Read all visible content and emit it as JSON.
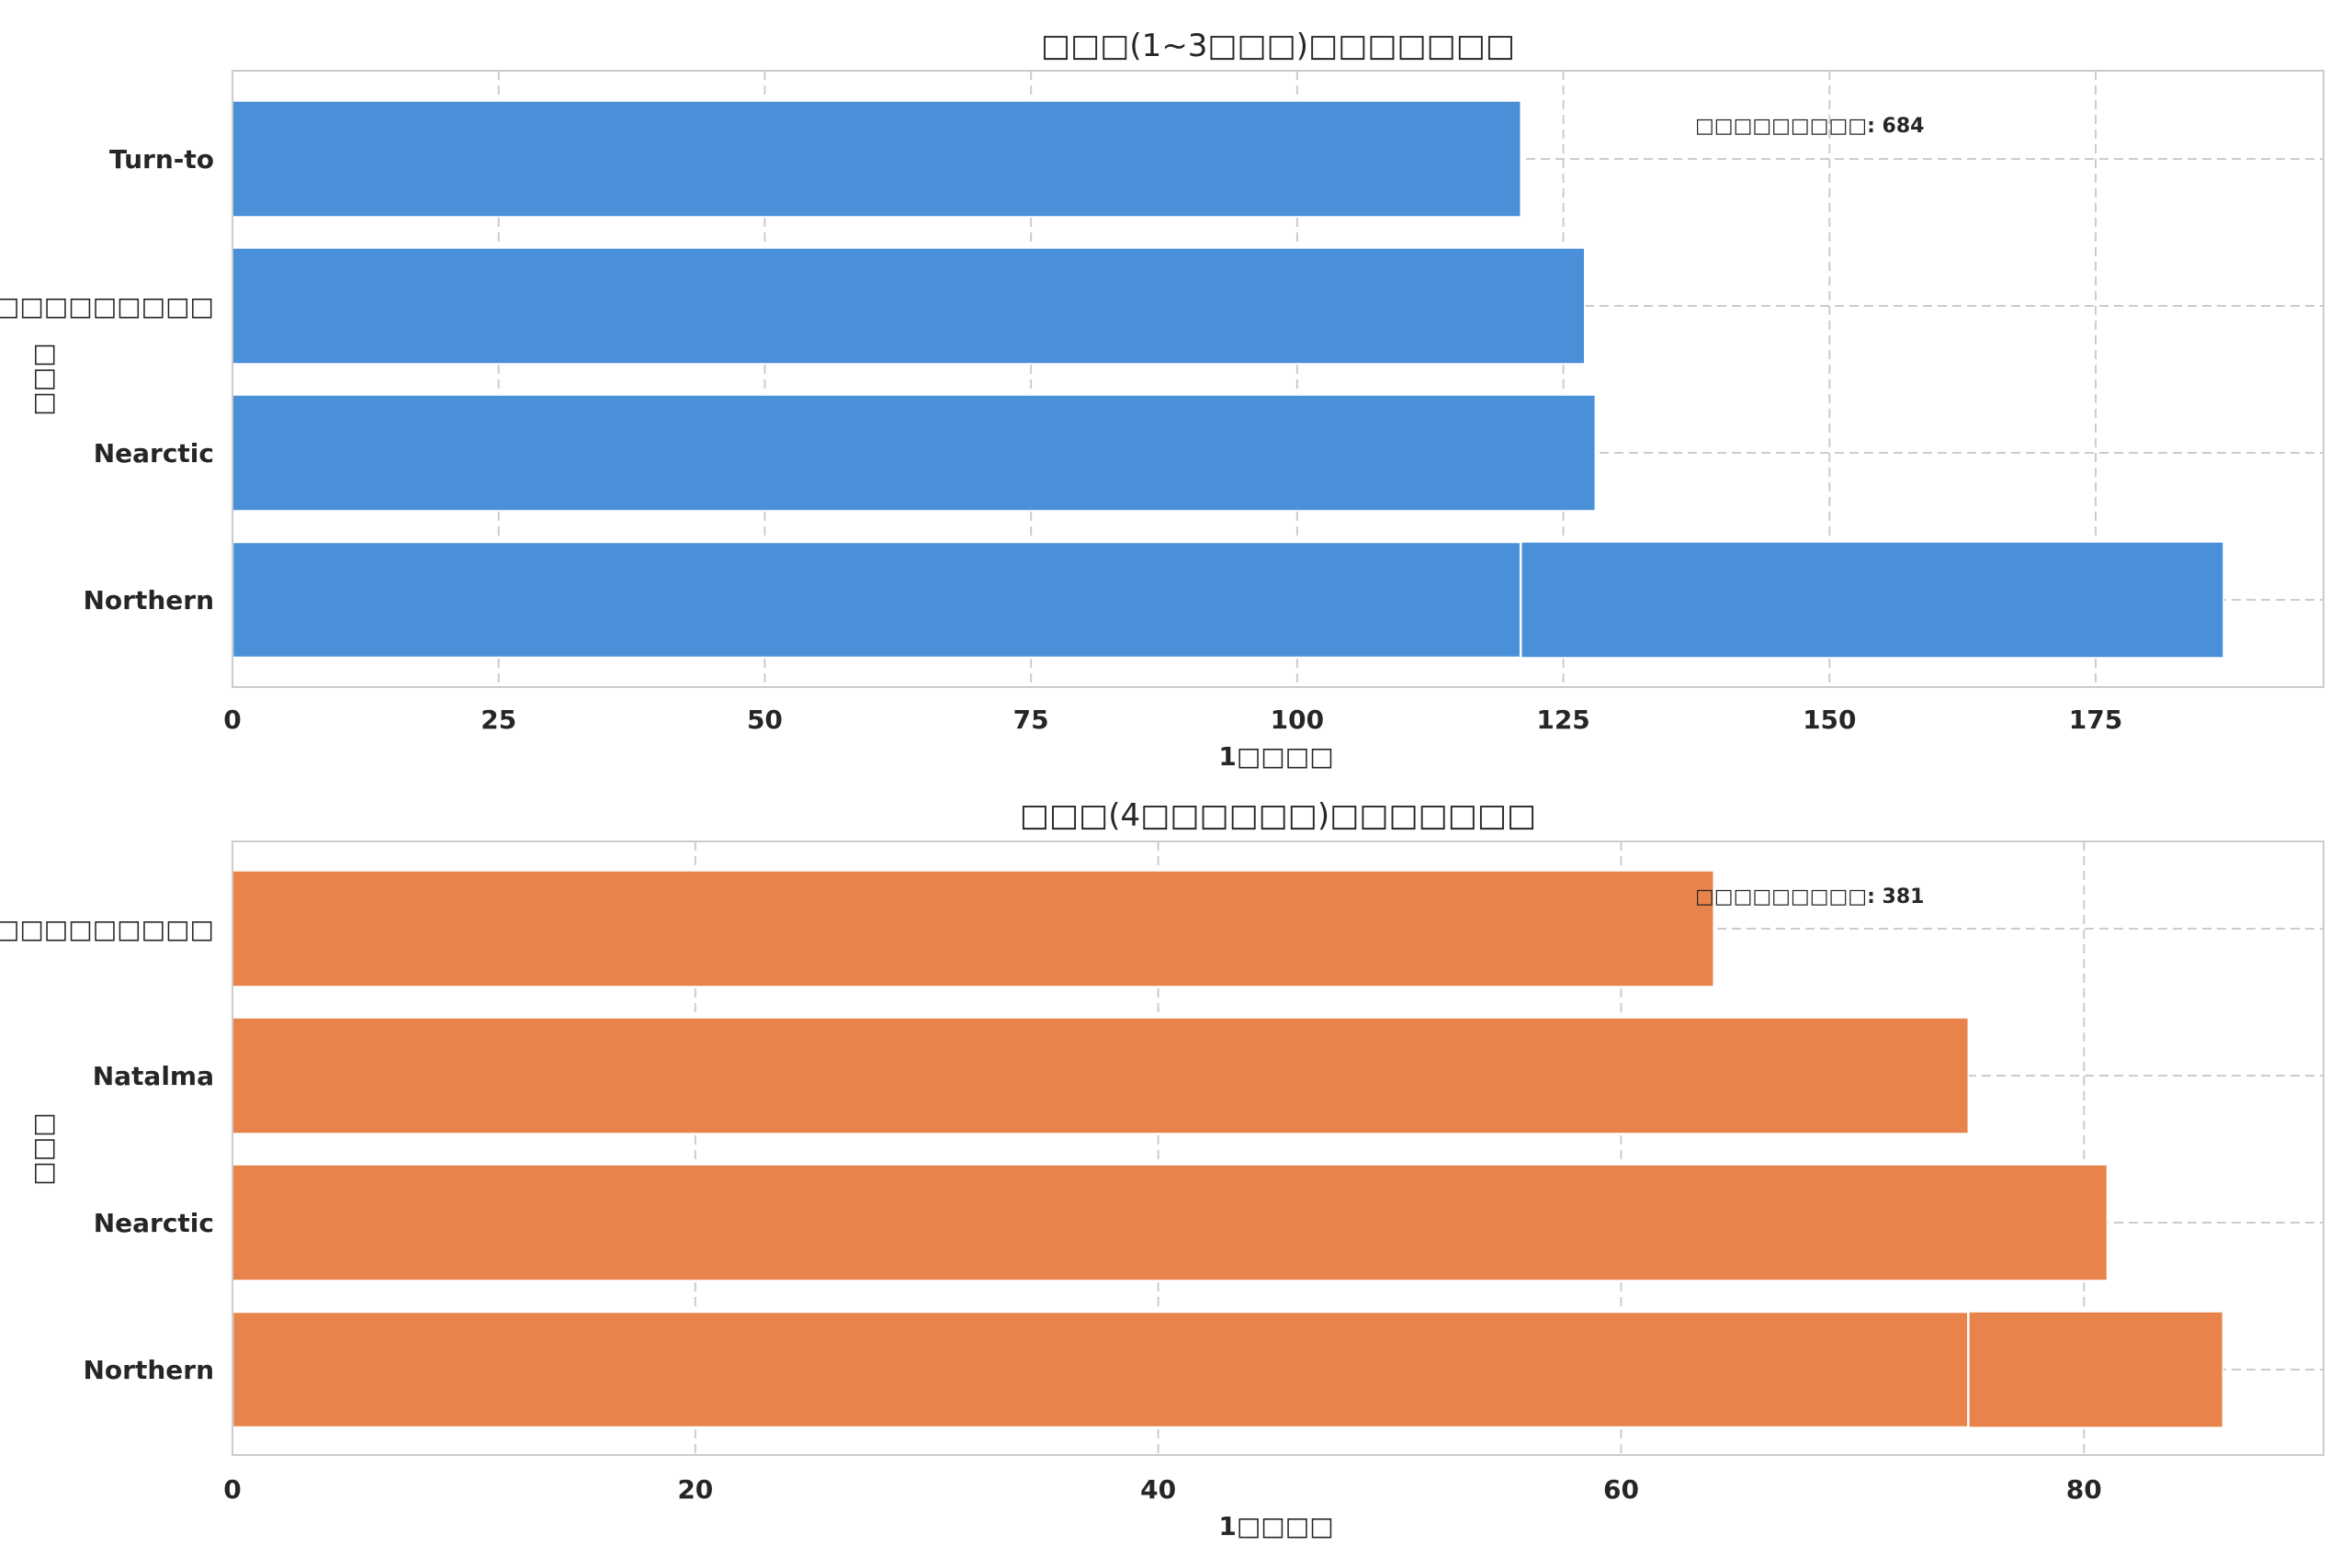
{
  "chart_data": [
    {
      "type": "bar",
      "orientation": "horizontal",
      "title": "□□□(1~3□□□)□□□□□□□",
      "xlabel": "1□□□□",
      "ylabel": "□□□",
      "categories": [
        "Turn-to",
        "□□□□□□□□□",
        "Nearctic",
        "Northern"
      ],
      "values": [
        121,
        127,
        128,
        187
      ],
      "overlay_marks": [
        {
          "category": "Northern",
          "value": 121
        }
      ],
      "xlim": [
        0,
        196.4
      ],
      "xticks": [
        0,
        25,
        50,
        75,
        100,
        125,
        150,
        175
      ],
      "annotation": "□□□□□□□□□: 684",
      "color": "#4a90d9",
      "grid": true
    },
    {
      "type": "bar",
      "orientation": "horizontal",
      "title": "□□□(4□□□□□□)□□□□□□□",
      "xlabel": "1□□□□",
      "ylabel": "□□□",
      "categories": [
        "□□□□□□□□□",
        "Natalma",
        "Nearctic",
        "Northern"
      ],
      "values": [
        64,
        75,
        81,
        86
      ],
      "overlay_marks": [
        {
          "category": "Northern",
          "value": 75
        }
      ],
      "xlim": [
        0,
        90.35
      ],
      "xticks": [
        0,
        20,
        40,
        60,
        80
      ],
      "annotation": "□□□□□□□□□: 381",
      "color": "#e8844b",
      "grid": true
    }
  ]
}
